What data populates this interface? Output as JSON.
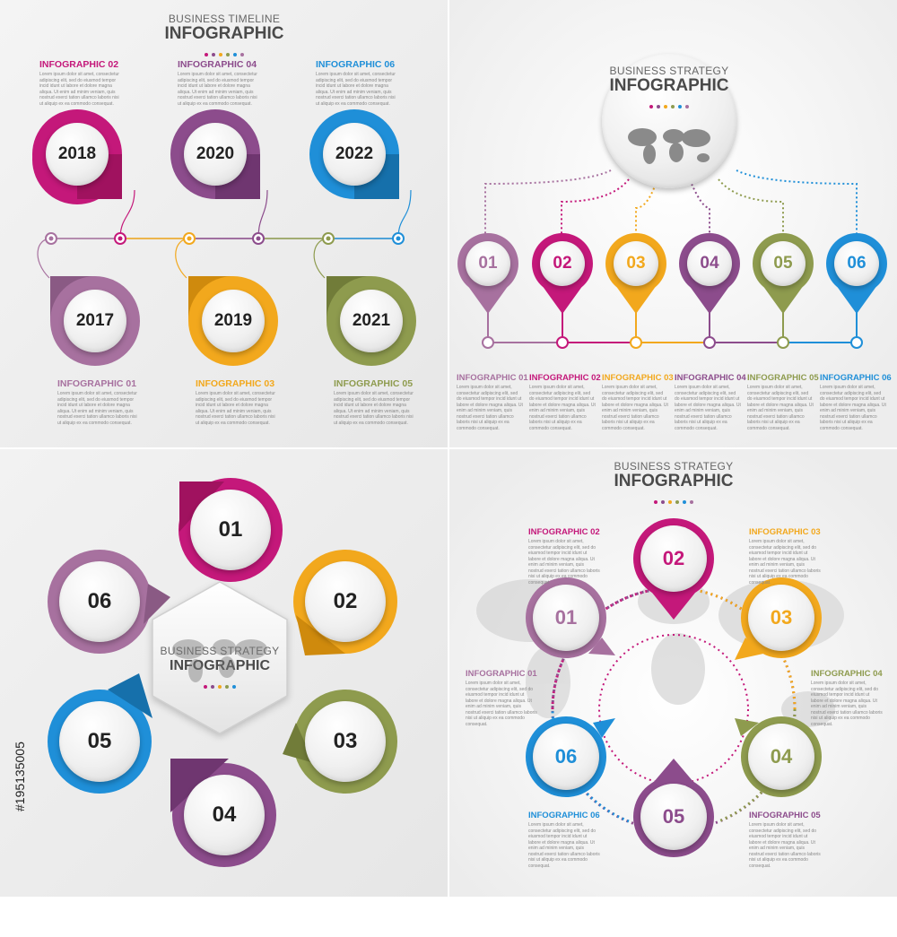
{
  "colors": {
    "magenta": "#c4187a",
    "purple": "#8c4c8c",
    "mauve": "#a7719f",
    "orange": "#f2a81d",
    "olive": "#8e9b4e",
    "blue": "#1f8fd8",
    "text_dark": "#222222",
    "divider": "#ffffff"
  },
  "stock_id": "#195135005",
  "lorem": "Lorem ipsum dolor sit amet, consectetur adipiscing elit, sed do eiusmod tempor incid idunt ut labore et dolore magna aliqua. Ut enim ad minim veniam, quis nostrud exerci tation ullamco laboris nisi ut aliquip ex ea commodo consequat.",
  "q1": {
    "header_sub": "BUSINESS TIMELINE",
    "header_main": "INFOGRAPHIC",
    "top": [
      {
        "label": "INFOGRAPHIC 02",
        "year": "2018",
        "color": "#c4187a"
      },
      {
        "label": "INFOGRAPHIC 04",
        "year": "2020",
        "color": "#8c4c8c"
      },
      {
        "label": "INFOGRAPHIC 06",
        "year": "2022",
        "color": "#1f8fd8"
      }
    ],
    "bottom": [
      {
        "label": "INFOGRAPHIC 01",
        "year": "2017",
        "color": "#a7719f"
      },
      {
        "label": "INFOGRAPHIC 03",
        "year": "2019",
        "color": "#f2a81d"
      },
      {
        "label": "INFOGRAPHIC 05",
        "year": "2021",
        "color": "#8e9b4e"
      }
    ]
  },
  "q2": {
    "header_sub": "BUSINESS STRATEGY",
    "header_main": "INFOGRAPHIC",
    "items": [
      {
        "num": "01",
        "label": "INFOGRAPHIC 01",
        "color": "#a7719f"
      },
      {
        "num": "02",
        "label": "INFOGRAPHIC 02",
        "color": "#c4187a"
      },
      {
        "num": "03",
        "label": "INFOGRAPHIC 03",
        "color": "#f2a81d"
      },
      {
        "num": "04",
        "label": "INFOGRAPHIC 04",
        "color": "#8c4c8c"
      },
      {
        "num": "05",
        "label": "INFOGRAPHIC 05",
        "color": "#8e9b4e"
      },
      {
        "num": "06",
        "label": "INFOGRAPHIC 06",
        "color": "#1f8fd8"
      }
    ]
  },
  "q3": {
    "header_sub": "BUSINESS STRATEGY",
    "header_main": "INFOGRAPHIC",
    "items": [
      {
        "num": "01",
        "color": "#c4187a"
      },
      {
        "num": "02",
        "color": "#f2a81d"
      },
      {
        "num": "03",
        "color": "#8e9b4e"
      },
      {
        "num": "04",
        "color": "#8c4c8c"
      },
      {
        "num": "05",
        "color": "#1f8fd8"
      },
      {
        "num": "06",
        "color": "#a7719f"
      }
    ]
  },
  "q4": {
    "header_sub": "BUSINESS STRATEGY",
    "header_main": "INFOGRAPHIC",
    "items": [
      {
        "num": "01",
        "label": "INFOGRAPHIC 01",
        "color": "#a7719f"
      },
      {
        "num": "02",
        "label": "INFOGRAPHIC 02",
        "color": "#c4187a"
      },
      {
        "num": "03",
        "label": "INFOGRAPHIC 03",
        "color": "#f2a81d"
      },
      {
        "num": "04",
        "label": "INFOGRAPHIC 04",
        "color": "#8e9b4e"
      },
      {
        "num": "05",
        "label": "INFOGRAPHIC 05",
        "color": "#8c4c8c"
      },
      {
        "num": "06",
        "label": "INFOGRAPHIC 06",
        "color": "#1f8fd8"
      }
    ]
  }
}
